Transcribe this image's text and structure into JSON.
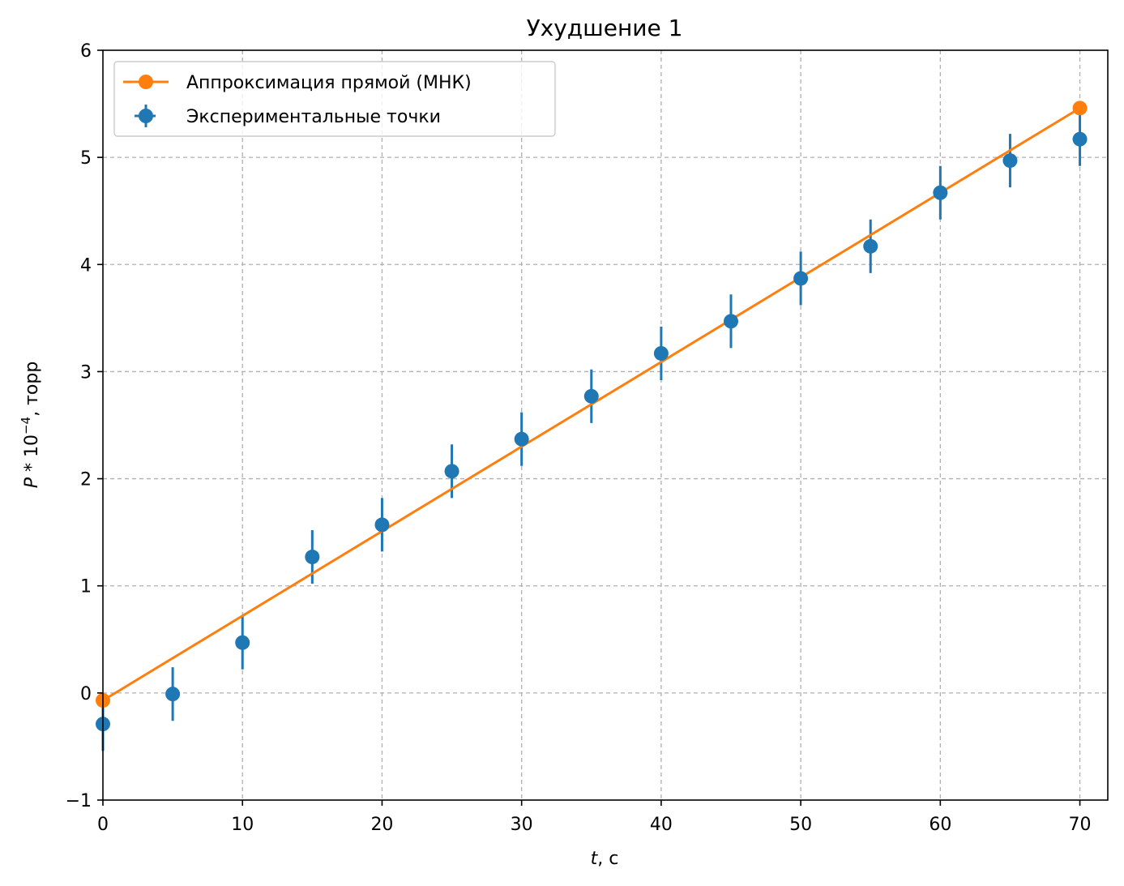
{
  "chart_data": {
    "type": "scatter",
    "title": "Ухудшение 1",
    "xlabel": {
      "italic": "t",
      "rest": ", с"
    },
    "ylabel": {
      "italic": "P",
      "rest": " * 10",
      "sup": "−4",
      "tail": ", торр"
    },
    "xlim": [
      0,
      72
    ],
    "ylim": [
      -1,
      6
    ],
    "x_ticks": [
      0,
      10,
      20,
      30,
      40,
      50,
      60,
      70
    ],
    "x_tick_labels": [
      "0",
      "10",
      "20",
      "30",
      "40",
      "50",
      "60",
      "70"
    ],
    "y_ticks": [
      -1,
      0,
      1,
      2,
      3,
      4,
      5,
      6
    ],
    "y_tick_labels": [
      "−1",
      "0",
      "1",
      "2",
      "3",
      "4",
      "5",
      "6"
    ],
    "grid": true,
    "legend_position": "upper-left",
    "series": [
      {
        "name": "Аппроксимация прямой (МНК)",
        "kind": "line-with-endpoint-markers",
        "color": "#ff7f0e",
        "x": [
          0,
          70
        ],
        "y": [
          -0.07,
          5.46
        ]
      },
      {
        "name": "Экспериментальные точки",
        "kind": "errorbar",
        "color": "#1f77b4",
        "x": [
          0,
          5,
          10,
          15,
          20,
          25,
          30,
          35,
          40,
          45,
          50,
          55,
          60,
          65,
          70
        ],
        "y": [
          -0.29,
          -0.01,
          0.47,
          1.27,
          1.57,
          2.07,
          2.37,
          2.77,
          3.17,
          3.47,
          3.87,
          4.17,
          4.67,
          4.97,
          5.17
        ],
        "yerr": 0.25
      }
    ]
  }
}
